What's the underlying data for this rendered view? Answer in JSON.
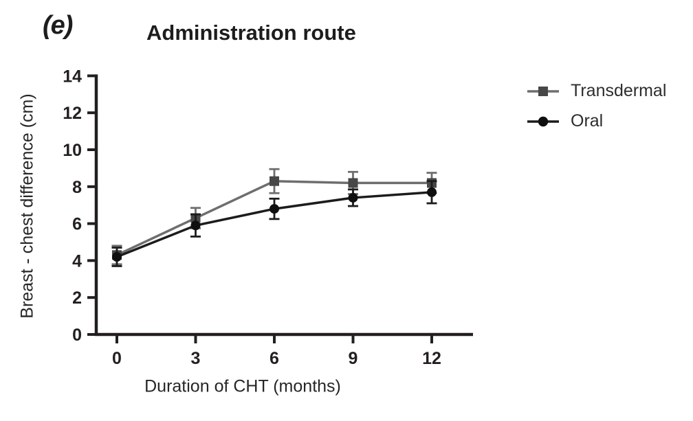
{
  "figure": {
    "panel_label": "(e)",
    "background_color": "#ffffff"
  },
  "chart_data": {
    "type": "line",
    "title": "Administration route",
    "panel_label": "(e)",
    "xlabel": "Duration of CHT (months)",
    "ylabel": "Breast - chest difference (cm)",
    "x": [
      0,
      3,
      6,
      9,
      12
    ],
    "xticks": [
      "0",
      "3",
      "6",
      "9",
      "12"
    ],
    "yticks": [
      "0",
      "2",
      "4",
      "6",
      "8",
      "10",
      "12",
      "14"
    ],
    "xlim": [
      0,
      12
    ],
    "ylim": [
      0,
      14
    ],
    "grid": false,
    "legend_position": "right",
    "error_bars": true,
    "axis_color": "#231f20",
    "series": [
      {
        "name": "Transdermal",
        "marker": "square",
        "line_color": "#6e6e6e",
        "marker_color": "#474747",
        "values": [
          4.3,
          6.3,
          8.3,
          8.2,
          8.2
        ],
        "errors": [
          0.5,
          0.55,
          0.65,
          0.6,
          0.55
        ]
      },
      {
        "name": "Oral",
        "marker": "circle",
        "line_color": "#1c1c1c",
        "marker_color": "#0f0f0f",
        "values": [
          4.2,
          5.9,
          6.8,
          7.4,
          7.7
        ],
        "errors": [
          0.5,
          0.6,
          0.55,
          0.45,
          0.6
        ]
      }
    ]
  }
}
